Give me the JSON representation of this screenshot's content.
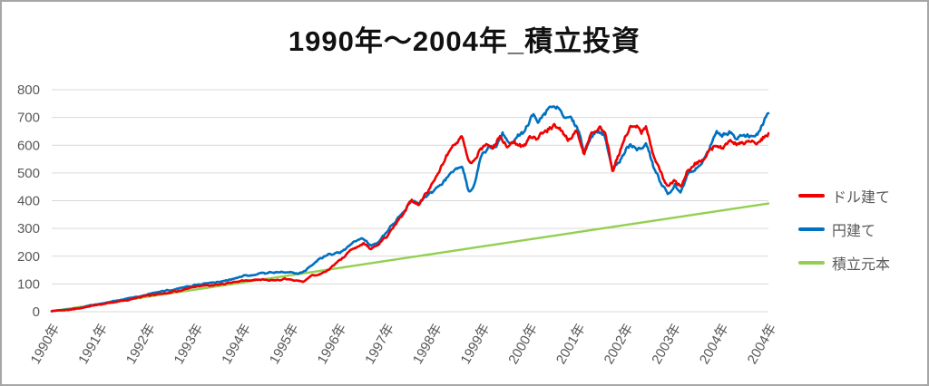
{
  "window": {
    "background": "#ffffff",
    "border_color": "#a6a6a6"
  },
  "chart_data": {
    "type": "line",
    "title": "1990年～2004年_積立投資",
    "legend_position": "right",
    "grid": true,
    "gridline_color": "#d9d9d9",
    "text_color": "#595959",
    "x_domain": [
      1990.0,
      2004.95
    ],
    "x_axis": {
      "labels": [
        "1990年",
        "1991年",
        "1992年",
        "1993年",
        "1994年",
        "1995年",
        "1996年",
        "1997年",
        "1998年",
        "1999年",
        "2000年",
        "2001年",
        "2002年",
        "2003年",
        "2004年",
        "2004年"
      ],
      "rotation_deg": -60
    },
    "y_axis": {
      "min": 0,
      "max": 800,
      "step": 100,
      "tick_labels": [
        "0",
        "100",
        "200",
        "300",
        "400",
        "500",
        "600",
        "700",
        "800"
      ]
    },
    "series": [
      {
        "name": "ドル建て",
        "key": "usd",
        "color": "#f00000",
        "seed": 42,
        "jitter": 1,
        "points": [
          [
            1990.0,
            2
          ],
          [
            1990.5,
            11
          ],
          [
            1991.0,
            25
          ],
          [
            1991.5,
            41
          ],
          [
            1992.0,
            57
          ],
          [
            1992.5,
            71
          ],
          [
            1993.0,
            85
          ],
          [
            1993.5,
            96
          ],
          [
            1994.0,
            112
          ],
          [
            1994.4,
            118
          ],
          [
            1994.8,
            112
          ],
          [
            1995.1,
            110
          ],
          [
            1995.25,
            104
          ],
          [
            1995.42,
            128
          ],
          [
            1995.6,
            138
          ],
          [
            1995.8,
            152
          ],
          [
            1996.0,
            183
          ],
          [
            1996.3,
            232
          ],
          [
            1996.5,
            249
          ],
          [
            1996.65,
            228
          ],
          [
            1996.8,
            240
          ],
          [
            1997.0,
            275
          ],
          [
            1997.3,
            345
          ],
          [
            1997.5,
            395
          ],
          [
            1997.65,
            380
          ],
          [
            1997.85,
            430
          ],
          [
            1998.0,
            478
          ],
          [
            1998.15,
            520
          ],
          [
            1998.3,
            565
          ],
          [
            1998.55,
            632
          ],
          [
            1998.65,
            565
          ],
          [
            1998.75,
            520
          ],
          [
            1998.9,
            572
          ],
          [
            1999.05,
            598
          ],
          [
            1999.2,
            578
          ],
          [
            1999.35,
            628
          ],
          [
            1999.5,
            588
          ],
          [
            1999.65,
            612
          ],
          [
            1999.8,
            598
          ],
          [
            2000.0,
            628
          ],
          [
            2000.15,
            612
          ],
          [
            2000.3,
            648
          ],
          [
            2000.5,
            658
          ],
          [
            2000.65,
            638
          ],
          [
            2000.8,
            618
          ],
          [
            2000.95,
            652
          ],
          [
            2001.1,
            580
          ],
          [
            2001.25,
            642
          ],
          [
            2001.45,
            678
          ],
          [
            2001.55,
            648
          ],
          [
            2001.7,
            502
          ],
          [
            2001.85,
            578
          ],
          [
            2002.0,
            645
          ],
          [
            2002.15,
            688
          ],
          [
            2002.3,
            662
          ],
          [
            2002.4,
            682
          ],
          [
            2002.55,
            562
          ],
          [
            2002.7,
            505
          ],
          [
            2002.85,
            452
          ],
          [
            2003.0,
            468
          ],
          [
            2003.12,
            450
          ],
          [
            2003.25,
            508
          ],
          [
            2003.4,
            528
          ],
          [
            2003.55,
            545
          ],
          [
            2003.7,
            585
          ],
          [
            2003.85,
            612
          ],
          [
            2004.0,
            598
          ],
          [
            2004.15,
            618
          ],
          [
            2004.3,
            600
          ],
          [
            2004.45,
            592
          ],
          [
            2004.6,
            618
          ],
          [
            2004.75,
            606
          ],
          [
            2004.87,
            628
          ],
          [
            2004.95,
            633
          ]
        ]
      },
      {
        "name": "円建て",
        "key": "jpy",
        "color": "#0070c0",
        "seed": 1337,
        "jitter": 1,
        "points": [
          [
            1990.0,
            2
          ],
          [
            1990.5,
            13
          ],
          [
            1991.0,
            29
          ],
          [
            1991.5,
            47
          ],
          [
            1992.0,
            65
          ],
          [
            1992.5,
            79
          ],
          [
            1993.0,
            95
          ],
          [
            1993.5,
            111
          ],
          [
            1994.0,
            126
          ],
          [
            1994.4,
            140
          ],
          [
            1994.7,
            146
          ],
          [
            1995.0,
            141
          ],
          [
            1995.15,
            137
          ],
          [
            1995.3,
            150
          ],
          [
            1995.45,
            175
          ],
          [
            1995.6,
            195
          ],
          [
            1995.8,
            207
          ],
          [
            1996.0,
            222
          ],
          [
            1996.3,
            248
          ],
          [
            1996.5,
            262
          ],
          [
            1996.65,
            242
          ],
          [
            1996.8,
            252
          ],
          [
            1997.0,
            285
          ],
          [
            1997.3,
            350
          ],
          [
            1997.5,
            402
          ],
          [
            1997.65,
            388
          ],
          [
            1997.85,
            415
          ],
          [
            1998.0,
            442
          ],
          [
            1998.15,
            462
          ],
          [
            1998.3,
            488
          ],
          [
            1998.55,
            530
          ],
          [
            1998.7,
            438
          ],
          [
            1998.82,
            462
          ],
          [
            1998.95,
            558
          ],
          [
            1999.1,
            598
          ],
          [
            1999.25,
            608
          ],
          [
            1999.4,
            658
          ],
          [
            1999.55,
            612
          ],
          [
            1999.7,
            638
          ],
          [
            1999.85,
            652
          ],
          [
            2000.0,
            718
          ],
          [
            2000.15,
            688
          ],
          [
            2000.35,
            742
          ],
          [
            2000.55,
            748
          ],
          [
            2000.7,
            702
          ],
          [
            2000.85,
            678
          ],
          [
            2001.0,
            652
          ],
          [
            2001.1,
            572
          ],
          [
            2001.25,
            622
          ],
          [
            2001.45,
            638
          ],
          [
            2001.55,
            610
          ],
          [
            2001.7,
            505
          ],
          [
            2001.85,
            545
          ],
          [
            2002.0,
            598
          ],
          [
            2002.15,
            618
          ],
          [
            2002.3,
            598
          ],
          [
            2002.4,
            615
          ],
          [
            2002.55,
            528
          ],
          [
            2002.7,
            468
          ],
          [
            2002.85,
            432
          ],
          [
            2003.0,
            460
          ],
          [
            2003.12,
            446
          ],
          [
            2003.25,
            502
          ],
          [
            2003.4,
            522
          ],
          [
            2003.55,
            540
          ],
          [
            2003.7,
            598
          ],
          [
            2003.85,
            665
          ],
          [
            2004.0,
            650
          ],
          [
            2004.15,
            658
          ],
          [
            2004.3,
            638
          ],
          [
            2004.45,
            645
          ],
          [
            2004.6,
            650
          ],
          [
            2004.75,
            665
          ],
          [
            2004.87,
            698
          ],
          [
            2004.95,
            727
          ]
        ]
      },
      {
        "name": "積立元本",
        "key": "principal",
        "color": "#92d050",
        "seed": 1,
        "jitter": 0,
        "points": [
          [
            1990.0,
            2
          ],
          [
            2004.95,
            390
          ]
        ]
      }
    ]
  }
}
